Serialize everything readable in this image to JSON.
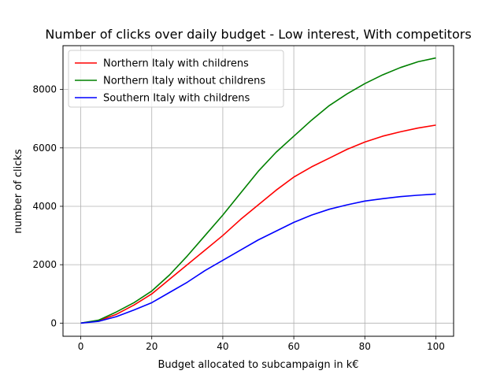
{
  "chart_data": {
    "type": "line",
    "title": "Number of clicks over daily budget - Low interest, With competitors",
    "xlabel": "Budget allocated to subcampaign in k€",
    "ylabel": "number of clicks",
    "xlim": [
      -5,
      105
    ],
    "ylim": [
      -450,
      9500
    ],
    "xticks": [
      0,
      20,
      40,
      60,
      80,
      100
    ],
    "yticks": [
      0,
      2000,
      4000,
      6000,
      8000
    ],
    "grid": true,
    "legend_position": "top-left",
    "x": [
      0,
      5,
      10,
      15,
      20,
      25,
      30,
      35,
      40,
      45,
      50,
      55,
      60,
      65,
      70,
      75,
      80,
      85,
      90,
      95,
      100
    ],
    "series": [
      {
        "name": "Northern Italy with childrens",
        "color": "#ff0000",
        "values": [
          0,
          80,
          300,
          620,
          1000,
          1500,
          2000,
          2500,
          3000,
          3550,
          4050,
          4550,
          5000,
          5350,
          5650,
          5950,
          6200,
          6400,
          6550,
          6680,
          6780
        ]
      },
      {
        "name": "Northern Italy without childrens",
        "color": "#008000",
        "values": [
          0,
          100,
          380,
          700,
          1100,
          1650,
          2300,
          3000,
          3700,
          4450,
          5200,
          5850,
          6400,
          6950,
          7450,
          7850,
          8200,
          8500,
          8750,
          8950,
          9080
        ]
      },
      {
        "name": "Southern Italy with childrens",
        "color": "#0000ff",
        "values": [
          0,
          60,
          220,
          450,
          700,
          1050,
          1400,
          1800,
          2150,
          2500,
          2850,
          3150,
          3450,
          3700,
          3900,
          4050,
          4180,
          4260,
          4330,
          4380,
          4420
        ]
      }
    ]
  }
}
